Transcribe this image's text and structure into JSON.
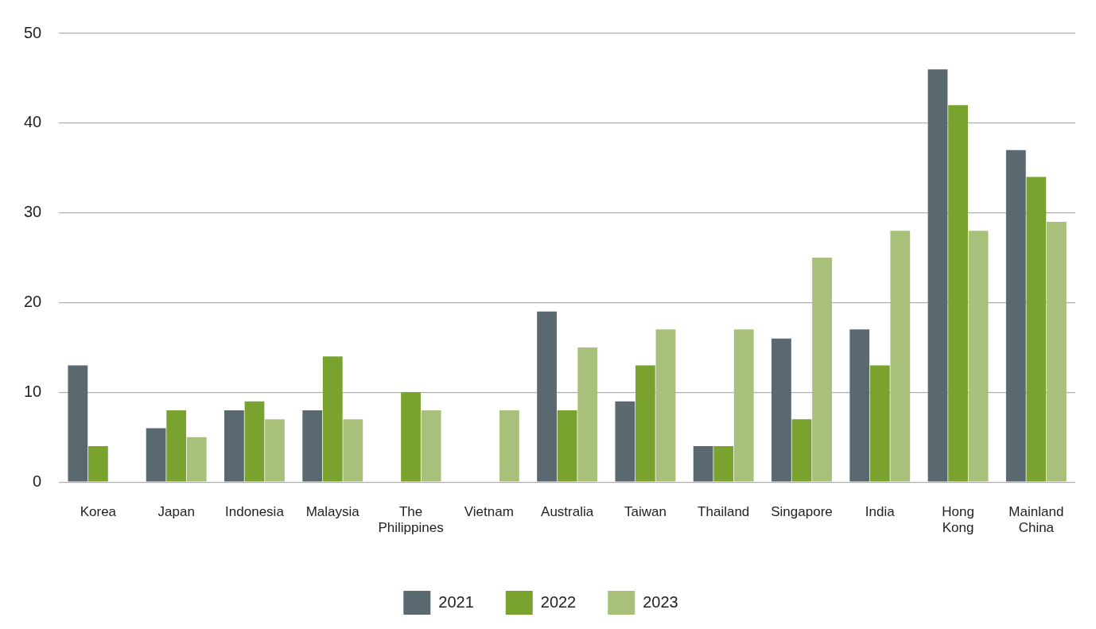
{
  "chart_data": {
    "type": "bar",
    "categories": [
      "Korea",
      "Japan",
      "Indonesia",
      "Malaysia",
      "The Philippines",
      "Vietnam",
      "Australia",
      "Taiwan",
      "Thailand",
      "Singapore",
      "India",
      "Hong Kong",
      "Mainland China"
    ],
    "series": [
      {
        "name": "2021",
        "color": "#5a6870",
        "values": [
          13,
          6,
          8,
          8,
          0,
          0,
          19,
          9,
          4,
          16,
          17,
          46,
          37
        ]
      },
      {
        "name": "2022",
        "color": "#7aa22f",
        "values": [
          4,
          8,
          9,
          14,
          10,
          0,
          8,
          13,
          4,
          7,
          13,
          42,
          34
        ]
      },
      {
        "name": "2023",
        "color": "#a8c07a",
        "values": [
          0,
          5,
          7,
          7,
          8,
          8,
          15,
          17,
          17,
          25,
          28,
          28,
          29
        ]
      }
    ],
    "ylim": [
      0,
      50
    ],
    "yticks": [
      0,
      10,
      20,
      30,
      40,
      50
    ],
    "grid": "y",
    "legend": "bottom"
  }
}
